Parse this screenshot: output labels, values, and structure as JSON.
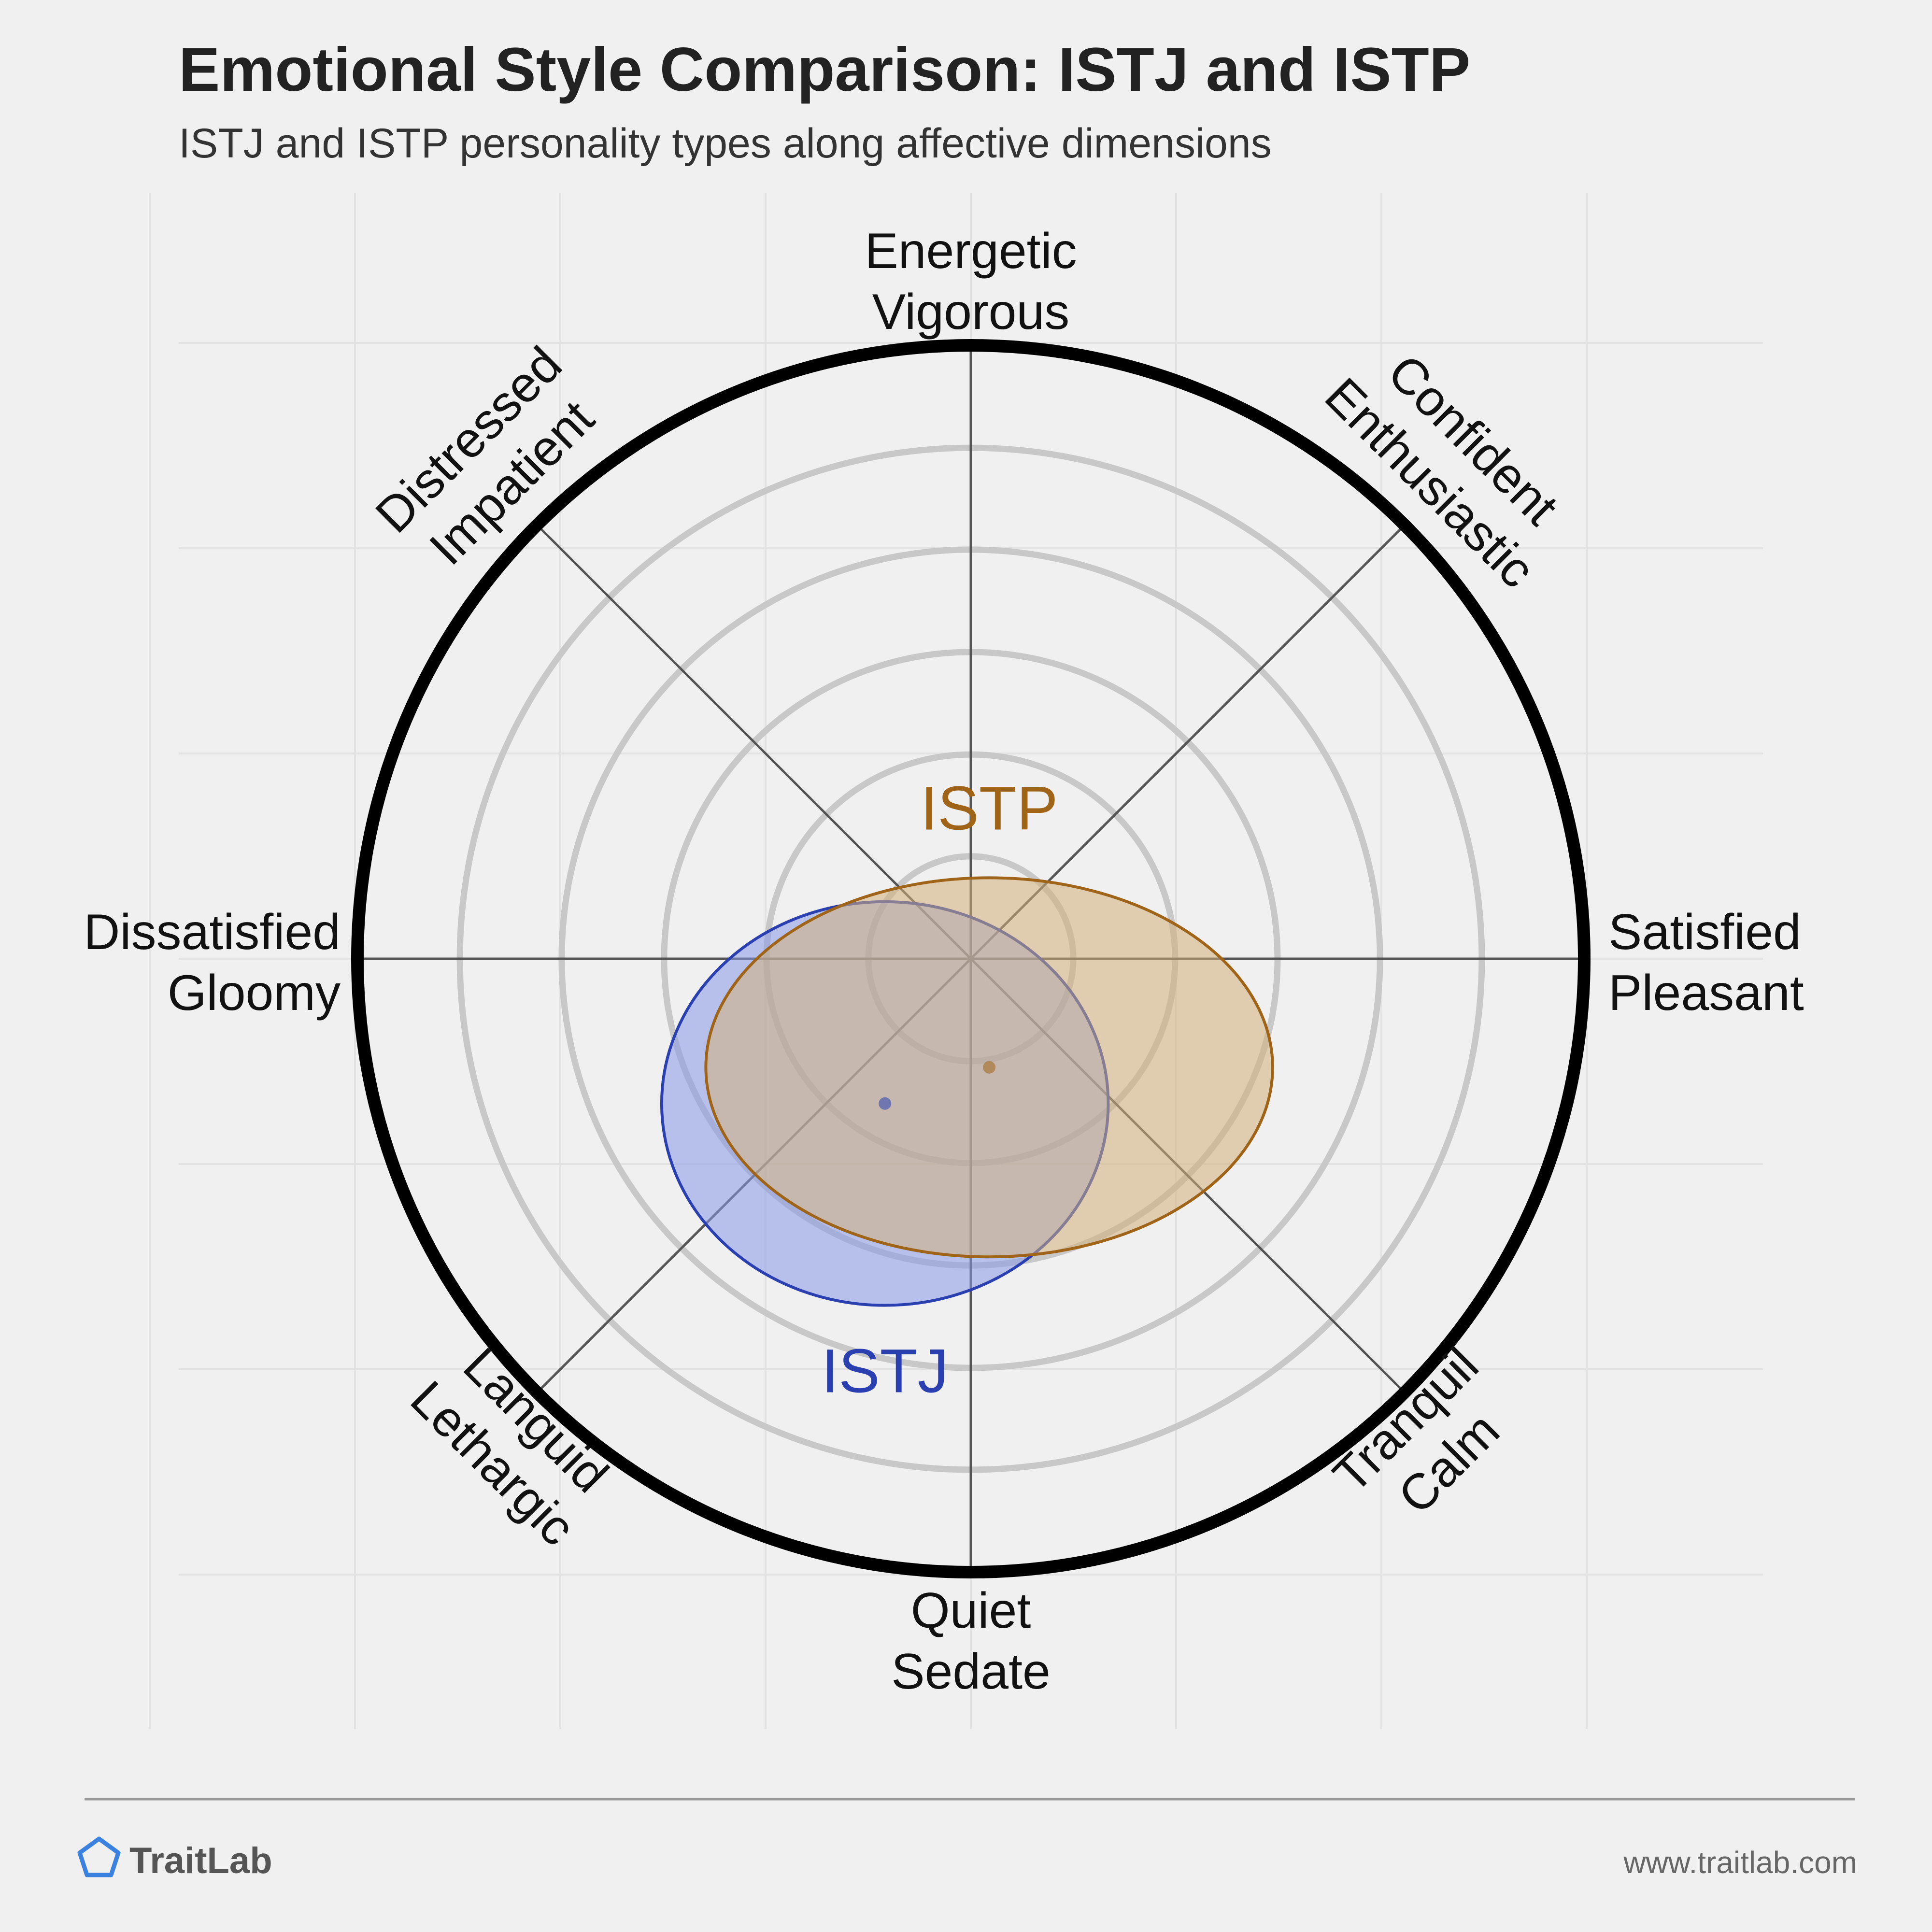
{
  "header": {
    "title": "Emotional Style Comparison: ISTJ and ISTP",
    "subtitle": "ISTJ and ISTP personality types along affective dimensions"
  },
  "chart_data": {
    "type": "scatter",
    "coordinate_system": "polar-circumplex",
    "axes": {
      "x": {
        "negative": [
          "Dissatisfied",
          "Gloomy"
        ],
        "positive": [
          "Satisfied",
          "Pleasant"
        ],
        "range": [
          -1,
          1
        ]
      },
      "y": {
        "negative": [
          "Quiet",
          "Sedate"
        ],
        "positive": [
          "Energetic",
          "Vigorous"
        ],
        "range": [
          -1,
          1
        ]
      }
    },
    "diagonal_labels": [
      {
        "angle": 45,
        "lines": [
          "Confident",
          "Enthusiastic"
        ]
      },
      {
        "angle": 135,
        "lines": [
          "Distressed",
          "Impatient"
        ]
      },
      {
        "angle": 225,
        "lines": [
          "Languid",
          "Lethargic"
        ]
      },
      {
        "angle": 315,
        "lines": [
          "Tranquil",
          "Calm"
        ]
      }
    ],
    "rings": [
      0.167,
      0.333,
      0.5,
      0.667,
      0.833
    ],
    "grid": true,
    "series": [
      {
        "name": "ISTJ",
        "color": "#2a3fb0",
        "fill": "#8899e8",
        "center": [
          -0.14,
          -0.236
        ],
        "spread": [
          0.364,
          0.329
        ]
      },
      {
        "name": "ISTP",
        "color": "#a06418",
        "fill": "#d4b07c",
        "center": [
          0.03,
          -0.177
        ],
        "spread": [
          0.462,
          0.309
        ]
      }
    ]
  },
  "footer": {
    "brand": "TraitLab",
    "brand_icon": "pentagon-logo-icon",
    "url": "www.traitlab.com",
    "accent_color": "#3b82e0"
  }
}
